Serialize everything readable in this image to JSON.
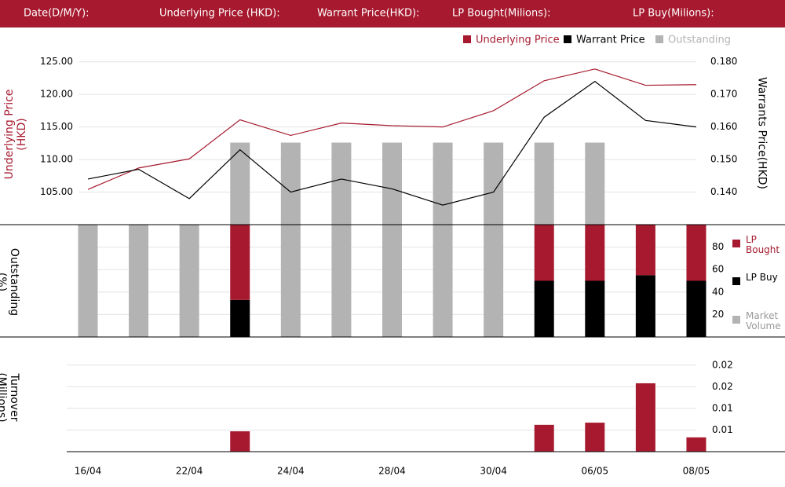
{
  "header": {
    "labels": [
      "Date(D/M/Y):",
      "Underlying Price (HKD):",
      "Warrant  Price(HKD):",
      "LP Bought(Milions):",
      "LP Buy(Milions):"
    ]
  },
  "chart_data": [
    {
      "type": "line",
      "y_label": "Underlying Price (HKD)",
      "y2_label": "Warrants  Price(HKD)",
      "ylim": [
        100,
        127.5
      ],
      "yticks": [
        {
          "value": 105,
          "label": "105.00"
        },
        {
          "value": 110,
          "label": "110.00"
        },
        {
          "value": 115,
          "label": "115.00"
        },
        {
          "value": 120,
          "label": "120.00"
        },
        {
          "value": 125,
          "label": "125.00"
        }
      ],
      "y2lim": [
        0.13,
        0.185
      ],
      "y2ticks": [
        {
          "value": 0.14,
          "label": "0.140"
        },
        {
          "value": 0.15,
          "label": "0.150"
        },
        {
          "value": 0.16,
          "label": "0.160"
        },
        {
          "value": 0.17,
          "label": "0.170"
        },
        {
          "value": 0.18,
          "label": "0.180"
        }
      ],
      "grid": true,
      "series": [
        {
          "name": "Underlying Price",
          "type": "line",
          "color": "#a6192e",
          "values": [
            105.4,
            108.7,
            110.1,
            116.1,
            113.7,
            115.6,
            115.2,
            115.0,
            117.5,
            122.1,
            123.9,
            121.4,
            121.5
          ]
        },
        {
          "name": "Warrant  Price",
          "type": "line",
          "axis": "y2",
          "color": "#000000",
          "values": [
            0.144,
            0.147,
            0.138,
            0.153,
            0.14,
            0.144,
            0.141,
            0.136,
            0.14,
            0.163,
            0.174,
            0.162,
            0.16
          ]
        },
        {
          "name": "Outstanding",
          "type": "bar",
          "color": "#b3b3b3",
          "values": [
            null,
            null,
            null,
            112.6,
            112.6,
            112.6,
            112.6,
            112.6,
            112.6,
            112.6,
            112.6,
            null,
            null
          ]
        }
      ]
    },
    {
      "type": "stacked_bar",
      "y_label": "Outstanding (%)",
      "ylim": [
        0,
        100
      ],
      "yticks": [
        20,
        40,
        60,
        80
      ],
      "grid": true,
      "series": [
        {
          "name": "LP Bought",
          "color": "#a6192e",
          "values": [
            null,
            null,
            null,
            67,
            null,
            null,
            null,
            null,
            null,
            50,
            50,
            45,
            50
          ]
        },
        {
          "name": "LP Buy",
          "color": "#000000",
          "values": [
            null,
            null,
            null,
            33,
            null,
            null,
            null,
            null,
            null,
            50,
            50,
            55,
            50
          ]
        },
        {
          "name": "Market Volume",
          "color": "#b3b3b3",
          "values": [
            100,
            100,
            100,
            null,
            100,
            100,
            100,
            100,
            100,
            null,
            null,
            null,
            null
          ]
        }
      ]
    },
    {
      "type": "bar",
      "y_label": "Turnover (Millions)",
      "ylim": [
        0,
        0.0265
      ],
      "yticks": [
        {
          "value": 0.005,
          "label": "0.01"
        },
        {
          "value": 0.01,
          "label": "0.01"
        },
        {
          "value": 0.015,
          "label": "0.02"
        },
        {
          "value": 0.02,
          "label": "0.02"
        }
      ],
      "grid": true,
      "color": "#a6192e",
      "categories": [
        "16/04",
        null,
        "22/04",
        null,
        "24/04",
        null,
        "28/04",
        null,
        "30/04",
        null,
        "06/05",
        null,
        "08/05"
      ],
      "values": [
        null,
        null,
        null,
        0.0047,
        null,
        null,
        null,
        null,
        null,
        0.0062,
        0.0067,
        0.0158,
        0.0033
      ]
    }
  ]
}
